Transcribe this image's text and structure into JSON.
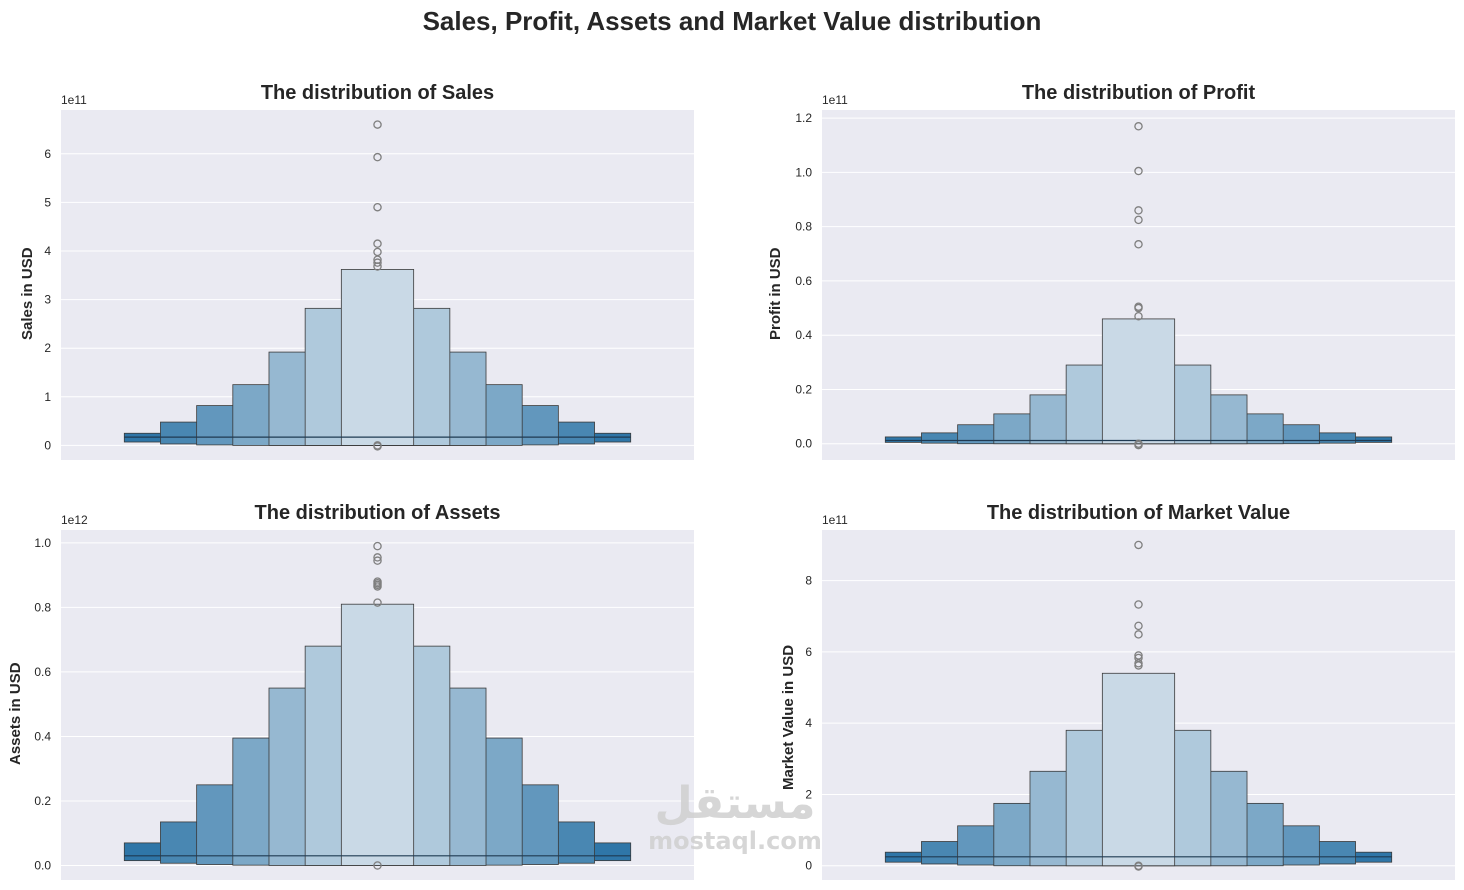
{
  "title": "Sales, Profit, Assets and Market Value distribution",
  "watermark": {
    "arabic": "مستقل",
    "latin": "mostaql.com"
  },
  "colors": {
    "background": "#eaeaf2",
    "grid": "#ffffff",
    "box_dark": "#2f76a8",
    "box_light": "#c9d9e6",
    "outlier": "#7f7f7f"
  },
  "chart_data": [
    {
      "id": "sales",
      "type": "boxen",
      "title": "The distribution of Sales",
      "xlabel": "",
      "ylabel": "Sales  in USD",
      "offset_text": "1e11",
      "ylim": [
        -0.3,
        6.9
      ],
      "yticks": [
        0,
        1,
        2,
        3,
        4,
        5,
        6
      ],
      "ytick_labels": [
        "0",
        "1",
        "2",
        "3",
        "4",
        "5",
        "6"
      ],
      "median": 0.17,
      "boxes": [
        {
          "low": 0.07,
          "high": 0.25
        },
        {
          "low": 0.03,
          "high": 0.48
        },
        {
          "low": 0.01,
          "high": 0.82
        },
        {
          "low": 0.0,
          "high": 1.25
        },
        {
          "low": 0.0,
          "high": 1.92
        },
        {
          "low": 0.0,
          "high": 2.82
        },
        {
          "low": 0.0,
          "high": 3.62
        }
      ],
      "outliers": [
        6.6,
        5.93,
        4.9,
        4.15,
        3.98,
        3.82,
        3.76,
        3.68,
        0.0,
        -0.02
      ]
    },
    {
      "id": "profit",
      "type": "boxen",
      "title": "The distribution of Profit",
      "xlabel": "",
      "ylabel": "Profit  in USD",
      "offset_text": "1e11",
      "ylim": [
        -0.06,
        1.23
      ],
      "yticks": [
        0.0,
        0.2,
        0.4,
        0.6,
        0.8,
        1.0,
        1.2
      ],
      "ytick_labels": [
        "0.0",
        "0.2",
        "0.4",
        "0.6",
        "0.8",
        "1.0",
        "1.2"
      ],
      "median": 0.012,
      "boxes": [
        {
          "low": 0.005,
          "high": 0.025
        },
        {
          "low": 0.002,
          "high": 0.04
        },
        {
          "low": 0.0,
          "high": 0.07
        },
        {
          "low": 0.0,
          "high": 0.11
        },
        {
          "low": 0.0,
          "high": 0.18
        },
        {
          "low": 0.0,
          "high": 0.29
        },
        {
          "low": 0.0,
          "high": 0.46
        }
      ],
      "outliers": [
        1.17,
        1.005,
        0.86,
        0.825,
        0.735,
        0.505,
        0.5,
        0.47,
        0.0,
        -0.005
      ]
    },
    {
      "id": "assets",
      "type": "boxen",
      "title": "The distribution of Assets",
      "xlabel": "",
      "ylabel": "Assets  in USD",
      "offset_text": "1e12",
      "ylim": [
        -0.045,
        1.04
      ],
      "yticks": [
        0.0,
        0.2,
        0.4,
        0.6,
        0.8,
        1.0
      ],
      "ytick_labels": [
        "0.0",
        "0.2",
        "0.4",
        "0.6",
        "0.8",
        "1.0"
      ],
      "median": 0.03,
      "boxes": [
        {
          "low": 0.015,
          "high": 0.07
        },
        {
          "low": 0.007,
          "high": 0.135
        },
        {
          "low": 0.003,
          "high": 0.25
        },
        {
          "low": 0.001,
          "high": 0.395
        },
        {
          "low": 0.0,
          "high": 0.55
        },
        {
          "low": 0.0,
          "high": 0.68
        },
        {
          "low": 0.0,
          "high": 0.81
        }
      ],
      "outliers": [
        0.99,
        0.955,
        0.945,
        0.88,
        0.875,
        0.87,
        0.865,
        0.815,
        0.0
      ]
    },
    {
      "id": "market_value",
      "type": "boxen",
      "title": "The distribution of Market Value",
      "xlabel": "",
      "ylabel": "Market Value  in USD",
      "offset_text": "1e11",
      "ylim": [
        -0.4,
        9.42
      ],
      "yticks": [
        0,
        2,
        4,
        6,
        8
      ],
      "ytick_labels": [
        "0",
        "2",
        "4",
        "6",
        "8"
      ],
      "median": 0.25,
      "boxes": [
        {
          "low": 0.1,
          "high": 0.38
        },
        {
          "low": 0.05,
          "high": 0.68
        },
        {
          "low": 0.02,
          "high": 1.12
        },
        {
          "low": 0.0,
          "high": 1.75
        },
        {
          "low": 0.0,
          "high": 2.65
        },
        {
          "low": 0.0,
          "high": 3.8
        },
        {
          "low": 0.0,
          "high": 5.4
        }
      ],
      "outliers": [
        9.0,
        7.33,
        6.73,
        6.49,
        5.9,
        5.83,
        5.68,
        5.62,
        0.0,
        -0.02
      ]
    }
  ]
}
